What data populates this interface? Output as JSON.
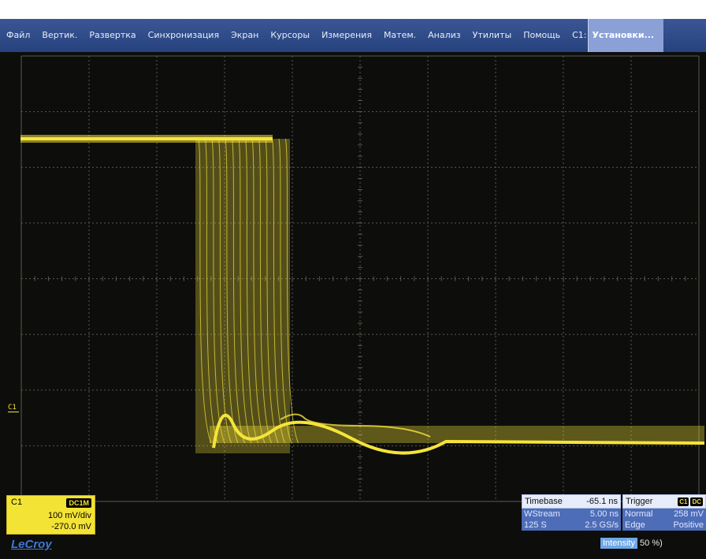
{
  "menubar": {
    "items": [
      "Файл",
      "Вертик.",
      "Развертка",
      "Синхронизация",
      "Экран",
      "Курсоры",
      "Измерения",
      "Матем.",
      "Анализ",
      "Утилиты",
      "Помощь"
    ],
    "channel_label": "C1:",
    "setup_label": "Установки..."
  },
  "trace": {
    "channel_marker": "C1",
    "color": "#f5e43a"
  },
  "channel": {
    "name": "C1",
    "coupling": "DC1M",
    "volts_per_div": "100 mV/div",
    "offset": "-270.0 mV"
  },
  "logo": "LeCroy",
  "timebase": {
    "label": "Timebase",
    "delay": "-65.1 ns",
    "mode": "WStream",
    "time_per_div": "5.00 ns",
    "memory": "125 S",
    "sample_rate": "2.5 GS/s"
  },
  "trigger": {
    "label": "Trigger",
    "source_badge": "C1",
    "coupling_badge": "DC",
    "mode": "Normal",
    "level": "258 mV",
    "type": "Edge",
    "slope": "Positive"
  },
  "intensity": {
    "label": "Intensity",
    "value": "50 %)"
  },
  "colors": {
    "menubar": "#2f4c8a",
    "trace": "#f5e43a",
    "background": "#0d0d0b",
    "grid": "#5a5a52"
  }
}
